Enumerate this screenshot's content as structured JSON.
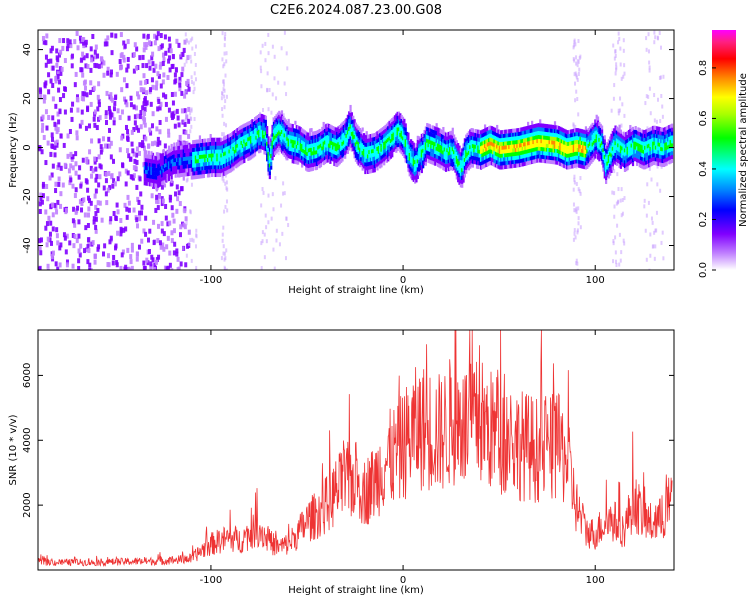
{
  "title": "C2E6.2024.087.23.00.G08",
  "colors": {
    "snr_line": "#ee3333",
    "colorbar": [
      "#ff00ff",
      "#ff2060",
      "#ff0000",
      "#ff8800",
      "#ffff00",
      "#00ff00",
      "#00ffff",
      "#0080ff",
      "#0000ff",
      "#8000ff",
      "#ffffff"
    ]
  },
  "chart_data": [
    {
      "type": "heatmap",
      "title": "C2E6.2024.087.23.00.G08",
      "xlabel": "Height of straight line (km)",
      "ylabel": "Frequency (Hz)",
      "xlim": [
        -190,
        141
      ],
      "ylim": [
        -50,
        48
      ],
      "xticks": [
        -100,
        0,
        100
      ],
      "yticks": [
        -40,
        -20,
        0,
        20,
        40
      ],
      "ridge": {
        "x": [
          -135,
          -128,
          -120,
          -110,
          -100,
          -95,
          -90,
          -85,
          -80,
          -75,
          -72,
          -70,
          -68,
          -65,
          -60,
          -55,
          -50,
          -45,
          -40,
          -35,
          -30,
          -28,
          -25,
          -20,
          -15,
          -10,
          -5,
          -3,
          0,
          3,
          6,
          8,
          10,
          12,
          15,
          18,
          22,
          25,
          28,
          30,
          32,
          35,
          40,
          45,
          50,
          60,
          70,
          80,
          85,
          90,
          95,
          100,
          103,
          105,
          110,
          115,
          120,
          125,
          130,
          135,
          140
        ],
        "y": [
          -8,
          -9,
          -5,
          -4,
          -3,
          -3,
          -1,
          2,
          4,
          7,
          6,
          -6,
          5,
          8,
          3,
          2,
          -1,
          0,
          3,
          1,
          5,
          9,
          3,
          -2,
          -1,
          2,
          6,
          8,
          5,
          -3,
          -6,
          -2,
          -1,
          3,
          2,
          1,
          -1,
          0,
          -5,
          -8,
          -2,
          1,
          0,
          2,
          0,
          1,
          3,
          2,
          0,
          1,
          0,
          5,
          2,
          -6,
          2,
          -1,
          2,
          0,
          2,
          1,
          3
        ]
      },
      "colorbar": {
        "label": "Normalized spectral amplitude",
        "range": [
          0.0,
          0.95
        ],
        "ticks": [
          "0.0",
          "0.2",
          "0.4",
          "0.6",
          "0.8"
        ]
      }
    },
    {
      "type": "line",
      "xlabel": "Height of straight line (km)",
      "ylabel": "SNR (10 * v/v)",
      "xlim": [
        -190,
        141
      ],
      "ylim": [
        0,
        7400
      ],
      "xticks": [
        -100,
        0,
        100
      ],
      "yticks": [
        2000,
        4000,
        6000
      ],
      "series": [
        {
          "x": [
            -190,
            -180,
            -170,
            -160,
            -150,
            -140,
            -130,
            -120,
            -110,
            -105,
            -100,
            -95,
            -90,
            -85,
            -80,
            -75,
            -70,
            -65,
            -60,
            -55,
            -50,
            -45,
            -40,
            -35,
            -30,
            -25,
            -20,
            -15,
            -10,
            -5,
            0,
            5,
            10,
            15,
            20,
            25,
            30,
            35,
            40,
            45,
            50,
            55,
            60,
            65,
            70,
            75,
            80,
            85,
            90,
            95,
            100,
            105,
            110,
            115,
            120,
            125,
            130,
            135,
            140
          ],
          "values": [
            250,
            230,
            240,
            230,
            250,
            260,
            270,
            300,
            350,
            600,
            800,
            900,
            1000,
            900,
            1100,
            1300,
            900,
            700,
            800,
            1100,
            1500,
            1700,
            2000,
            2400,
            2700,
            2800,
            2400,
            2700,
            3300,
            3500,
            3800,
            4300,
            4400,
            4300,
            4200,
            4600,
            4500,
            4400,
            4600,
            4300,
            4200,
            4100,
            3900,
            3800,
            3700,
            3700,
            3800,
            3500,
            2000,
            1200,
            1100,
            1500,
            1500,
            1200,
            2200,
            1600,
            1400,
            1600,
            2200
          ]
        }
      ]
    }
  ]
}
